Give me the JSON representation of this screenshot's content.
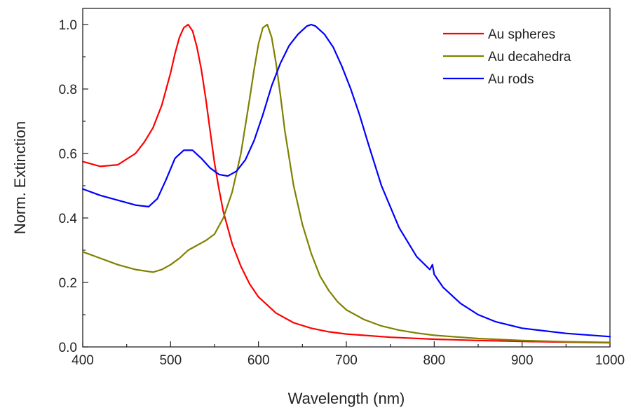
{
  "chart_data": {
    "type": "line",
    "xlabel": "Wavelength (nm)",
    "ylabel": "Norm. Extinction",
    "xlim": [
      400,
      1000
    ],
    "ylim": [
      0.0,
      1.05
    ],
    "xticks": [
      400,
      500,
      600,
      700,
      800,
      900,
      1000
    ],
    "xtick_labels": [
      "400",
      "500",
      "600",
      "700",
      "800",
      "900",
      "1000"
    ],
    "yticks": [
      0.0,
      0.2,
      0.4,
      0.6,
      0.8,
      1.0
    ],
    "ytick_labels": [
      "0.0",
      "0.2",
      "0.4",
      "0.6",
      "0.8",
      "1.0"
    ],
    "grid": false,
    "legend_position": "top-right",
    "series": [
      {
        "name": "Au spheres",
        "color": "#ff0000",
        "x": [
          400,
          420,
          440,
          460,
          470,
          480,
          490,
          500,
          505,
          510,
          515,
          520,
          525,
          530,
          535,
          540,
          545,
          550,
          555,
          560,
          570,
          580,
          590,
          600,
          620,
          640,
          660,
          680,
          700,
          750,
          800,
          850,
          900,
          950,
          1000
        ],
        "y": [
          0.575,
          0.56,
          0.565,
          0.6,
          0.635,
          0.68,
          0.75,
          0.85,
          0.91,
          0.96,
          0.99,
          1.0,
          0.98,
          0.93,
          0.86,
          0.77,
          0.67,
          0.57,
          0.49,
          0.42,
          0.32,
          0.25,
          0.195,
          0.155,
          0.105,
          0.075,
          0.058,
          0.047,
          0.04,
          0.03,
          0.024,
          0.02,
          0.017,
          0.015,
          0.013
        ]
      },
      {
        "name": "Au decahedra",
        "color": "#808000",
        "x": [
          400,
          420,
          440,
          460,
          480,
          490,
          500,
          510,
          520,
          530,
          540,
          550,
          560,
          570,
          580,
          590,
          595,
          600,
          605,
          610,
          615,
          620,
          625,
          630,
          640,
          650,
          660,
          670,
          680,
          690,
          700,
          720,
          740,
          760,
          780,
          800,
          850,
          900,
          950,
          1000
        ],
        "y": [
          0.295,
          0.275,
          0.255,
          0.24,
          0.232,
          0.24,
          0.255,
          0.275,
          0.3,
          0.315,
          0.33,
          0.35,
          0.4,
          0.48,
          0.6,
          0.77,
          0.86,
          0.94,
          0.99,
          1.0,
          0.96,
          0.88,
          0.78,
          0.67,
          0.5,
          0.38,
          0.29,
          0.22,
          0.175,
          0.14,
          0.115,
          0.085,
          0.065,
          0.052,
          0.043,
          0.036,
          0.026,
          0.02,
          0.016,
          0.014
        ]
      },
      {
        "name": "Au rods",
        "color": "#0000ff",
        "x": [
          400,
          420,
          440,
          460,
          475,
          485,
          495,
          505,
          515,
          525,
          535,
          545,
          555,
          565,
          575,
          585,
          595,
          605,
          615,
          625,
          635,
          645,
          655,
          660,
          665,
          675,
          685,
          695,
          705,
          715,
          725,
          740,
          760,
          780,
          795,
          798,
          800,
          810,
          830,
          850,
          870,
          900,
          950,
          1000
        ],
        "y": [
          0.49,
          0.47,
          0.455,
          0.44,
          0.435,
          0.46,
          0.52,
          0.585,
          0.61,
          0.61,
          0.585,
          0.555,
          0.535,
          0.53,
          0.545,
          0.58,
          0.64,
          0.72,
          0.81,
          0.88,
          0.935,
          0.97,
          0.995,
          1.0,
          0.995,
          0.97,
          0.93,
          0.87,
          0.8,
          0.72,
          0.63,
          0.5,
          0.37,
          0.28,
          0.24,
          0.255,
          0.225,
          0.185,
          0.135,
          0.1,
          0.078,
          0.058,
          0.042,
          0.032
        ]
      }
    ]
  }
}
